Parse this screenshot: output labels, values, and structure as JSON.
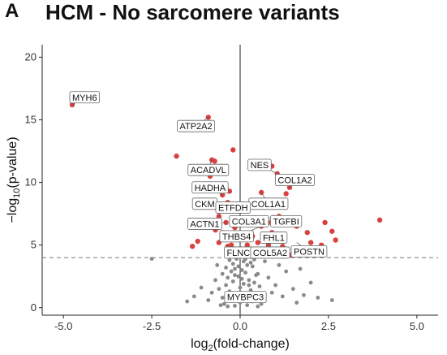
{
  "panel_letter": "A",
  "chart_data": {
    "type": "scatter",
    "title": "HCM - No sarcomere variants",
    "xlabel": "log2(fold-change)",
    "xlabel_main": "log",
    "xlabel_sub": "2",
    "xlabel_rest": "(fold-change)",
    "ylabel": "-log10(p-value)",
    "ylabel_main": "−log",
    "ylabel_sub": "10",
    "ylabel_rest": "(p-value)",
    "xlim": [
      -5.6,
      5.6
    ],
    "ylim": [
      -0.6,
      21
    ],
    "xticks": [
      -5.0,
      -2.5,
      0.0,
      2.5,
      5.0
    ],
    "xtick_labels": [
      "-5.0",
      "-2.5",
      "0.0",
      "2.5",
      "5.0"
    ],
    "yticks": [
      0,
      5,
      10,
      15,
      20
    ],
    "ytick_labels": [
      "0",
      "5",
      "10",
      "15",
      "20"
    ],
    "vline_x": 0,
    "significance_threshold_y": 4.0,
    "grid": false,
    "colors": {
      "significant": "#d94040",
      "nonsignificant": "#8a8a8a",
      "threshold": "#777777"
    },
    "significant_points": [
      [
        -4.75,
        16.2
      ],
      [
        -0.9,
        15.2
      ],
      [
        -1.8,
        12.1
      ],
      [
        -0.8,
        11.8
      ],
      [
        -0.72,
        11.7
      ],
      [
        -0.2,
        12.6
      ],
      [
        -0.85,
        10.5
      ],
      [
        -0.5,
        9.0
      ],
      [
        -0.3,
        9.3
      ],
      [
        -0.55,
        8.1
      ],
      [
        -0.35,
        8.4
      ],
      [
        -0.6,
        7.3
      ],
      [
        -0.4,
        6.8
      ],
      [
        -0.7,
        6.2
      ],
      [
        -0.5,
        6.0
      ],
      [
        -0.3,
        5.8
      ],
      [
        -0.25,
        5.0
      ],
      [
        -0.45,
        5.5
      ],
      [
        -0.35,
        4.9
      ],
      [
        -0.3,
        4.2
      ],
      [
        -0.2,
        4.5
      ],
      [
        -1.2,
        5.3
      ],
      [
        -1.35,
        4.9
      ],
      [
        -0.6,
        5.2
      ],
      [
        -0.4,
        5.7
      ],
      [
        -0.15,
        6.4
      ],
      [
        0.6,
        9.2
      ],
      [
        0.9,
        11.3
      ],
      [
        1.05,
        10.7
      ],
      [
        1.4,
        9.6
      ],
      [
        1.3,
        9.1
      ],
      [
        1.5,
        10.0
      ],
      [
        0.95,
        7.2
      ],
      [
        1.1,
        7.3
      ],
      [
        0.8,
        6.8
      ],
      [
        0.6,
        6.5
      ],
      [
        1.6,
        6.5
      ],
      [
        1.9,
        6.0
      ],
      [
        2.4,
        6.8
      ],
      [
        2.6,
        6.1
      ],
      [
        2.7,
        5.4
      ],
      [
        3.95,
        7.0
      ],
      [
        0.5,
        5.2
      ],
      [
        0.8,
        5.0
      ],
      [
        1.0,
        4.6
      ],
      [
        0.45,
        4.4
      ],
      [
        0.6,
        4.2
      ],
      [
        1.25,
        5.5
      ],
      [
        1.2,
        4.9
      ],
      [
        2.0,
        5.2
      ],
      [
        0.35,
        5.7
      ],
      [
        0.3,
        4.1
      ],
      [
        0.9,
        6.0
      ],
      [
        0.75,
        4.3
      ],
      [
        1.45,
        4.2
      ],
      [
        0.2,
        5.0
      ],
      [
        2.3,
        5.0
      ]
    ],
    "nonsignificant_points": [
      [
        -0.3,
        3.8
      ],
      [
        -0.2,
        3.5
      ],
      [
        -0.1,
        3.9
      ],
      [
        0.1,
        3.7
      ],
      [
        0.2,
        3.4
      ],
      [
        0.3,
        3.6
      ],
      [
        -0.4,
        3.2
      ],
      [
        -0.25,
        2.9
      ],
      [
        -0.15,
        3.1
      ],
      [
        0.05,
        3.0
      ],
      [
        0.15,
        2.8
      ],
      [
        0.35,
        3.3
      ],
      [
        0.45,
        2.6
      ],
      [
        -0.5,
        2.7
      ],
      [
        -0.35,
        2.4
      ],
      [
        -0.05,
        2.5
      ],
      [
        0.25,
        2.2
      ],
      [
        0.4,
        2.0
      ],
      [
        -0.2,
        2.1
      ],
      [
        0.1,
        1.9
      ],
      [
        -0.4,
        1.8
      ],
      [
        0.55,
        1.7
      ],
      [
        -0.6,
        1.5
      ],
      [
        0.0,
        1.6
      ],
      [
        0.3,
        1.4
      ],
      [
        -0.3,
        1.3
      ],
      [
        0.2,
        1.1
      ],
      [
        -0.1,
        1.0
      ],
      [
        0.45,
        0.9
      ],
      [
        -0.5,
        0.8
      ],
      [
        0.1,
        0.7
      ],
      [
        0.35,
        0.5
      ],
      [
        -0.25,
        0.6
      ],
      [
        0.0,
        0.4
      ],
      [
        0.6,
        0.3
      ],
      [
        -0.45,
        0.3
      ],
      [
        0.2,
        0.2
      ],
      [
        -0.15,
        0.15
      ],
      [
        0.5,
        0.1
      ],
      [
        -0.35,
        0.1
      ],
      [
        0.8,
        2.4
      ],
      [
        1.0,
        1.8
      ],
      [
        0.9,
        1.2
      ],
      [
        1.2,
        0.9
      ],
      [
        1.5,
        1.5
      ],
      [
        1.8,
        1.0
      ],
      [
        2.2,
        0.8
      ],
      [
        2.6,
        0.6
      ],
      [
        1.3,
        2.9
      ],
      [
        1.1,
        3.4
      ],
      [
        0.7,
        3.7
      ],
      [
        -0.7,
        2.2
      ],
      [
        -0.8,
        1.2
      ],
      [
        -0.9,
        0.6
      ],
      [
        -1.1,
        1.6
      ],
      [
        -1.3,
        0.9
      ],
      [
        -1.5,
        0.5
      ],
      [
        -0.65,
        3.4
      ],
      [
        0.65,
        1.1
      ],
      [
        -0.55,
        0.2
      ],
      [
        1.6,
        0.4
      ],
      [
        2.0,
        2.0
      ],
      [
        0.15,
        3.9
      ],
      [
        -0.05,
        3.3
      ],
      [
        0.4,
        3.85
      ],
      [
        -0.15,
        2.6
      ],
      [
        0.05,
        2.3
      ],
      [
        0.25,
        1.8
      ],
      [
        -0.3,
        1.0
      ],
      [
        0.5,
        2.7
      ],
      [
        -2.5,
        3.9
      ],
      [
        1.7,
        3.1
      ]
    ],
    "gene_labels": [
      {
        "name": "MYH6",
        "x": -4.4,
        "y": 16.8,
        "px": -4.75,
        "py": 16.2
      },
      {
        "name": "ATP2A2",
        "x": -1.25,
        "y": 14.5,
        "px": -0.9,
        "py": 15.2
      },
      {
        "name": "ACADVL",
        "x": -0.9,
        "y": 11.0,
        "px": -0.8,
        "py": 11.8
      },
      {
        "name": "NES",
        "x": 0.55,
        "y": 11.4,
        "px": 1.05,
        "py": 10.7
      },
      {
        "name": "COL1A2",
        "x": 1.55,
        "y": 10.2,
        "px": 1.4,
        "py": 9.6
      },
      {
        "name": "HADHA",
        "x": -0.85,
        "y": 9.6,
        "px": -0.5,
        "py": 9.0
      },
      {
        "name": "COL1A1",
        "x": 0.8,
        "y": 8.3,
        "px": 0.6,
        "py": 9.2
      },
      {
        "name": "CKM",
        "x": -1.0,
        "y": 8.3,
        "px": -0.55,
        "py": 8.1
      },
      {
        "name": "ETFDH",
        "x": -0.2,
        "y": 8.0,
        "px": -0.35,
        "py": 8.4
      },
      {
        "name": "COL3A1",
        "x": 0.25,
        "y": 6.9,
        "px": 0.95,
        "py": 7.2
      },
      {
        "name": "TGFBI",
        "x": 1.3,
        "y": 6.9,
        "px": 1.1,
        "py": 7.3
      },
      {
        "name": "ACTN1",
        "x": -1.0,
        "y": 6.7,
        "px": -0.4,
        "py": 6.8
      },
      {
        "name": "THBS4",
        "x": -0.1,
        "y": 5.7,
        "px": 0.6,
        "py": 6.5
      },
      {
        "name": "FHL1",
        "x": 0.95,
        "y": 5.6,
        "px": 0.8,
        "py": 5.0
      },
      {
        "name": "FLNC",
        "x": -0.05,
        "y": 4.4,
        "px": 0.45,
        "py": 4.4
      },
      {
        "name": "COL5A2",
        "x": 0.85,
        "y": 4.4,
        "px": 0.8,
        "py": 5.0
      },
      {
        "name": "POSTN",
        "x": 1.95,
        "y": 4.5,
        "px": 1.6,
        "py": 5.2
      },
      {
        "name": "MYBPC3",
        "x": 0.15,
        "y": 0.85,
        "px": 0.05,
        "py": 1.3
      }
    ]
  }
}
